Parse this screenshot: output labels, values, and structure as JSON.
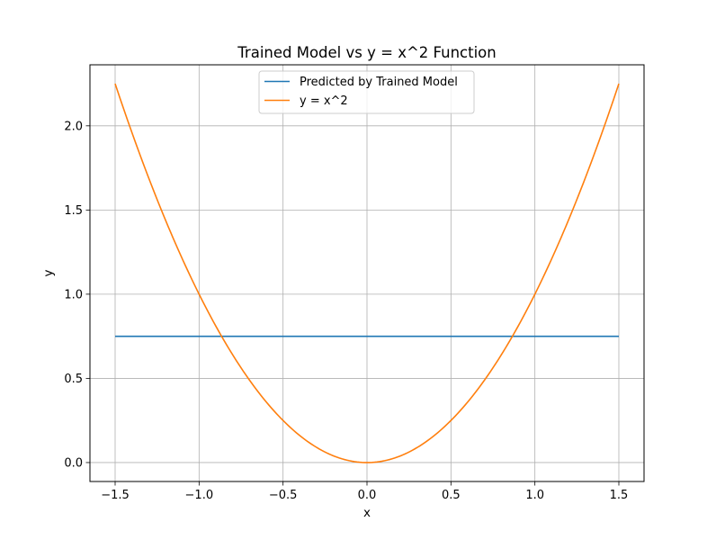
{
  "chart_data": {
    "type": "line",
    "title": "Trained Model vs y = x^2 Function",
    "xlabel": "x",
    "ylabel": "y",
    "xlim": [
      -1.65,
      1.65
    ],
    "ylim": [
      -0.1125,
      2.3625
    ],
    "xticks": [
      -1.5,
      -1.0,
      -0.5,
      0.0,
      0.5,
      1.0,
      1.5
    ],
    "xtick_labels": [
      "−1.5",
      "−1.0",
      "−0.5",
      "0.0",
      "0.5",
      "1.0",
      "1.5"
    ],
    "yticks": [
      0.0,
      0.5,
      1.0,
      1.5,
      2.0
    ],
    "ytick_labels": [
      "0.0",
      "0.5",
      "1.0",
      "1.5",
      "2.0"
    ],
    "grid": true,
    "legend_position": "upper-center",
    "series": [
      {
        "name": "Predicted by Trained Model",
        "color": "#1f77b4",
        "x": [
          -1.5,
          1.5
        ],
        "y": [
          0.75,
          0.75
        ]
      },
      {
        "name": "y = x^2",
        "color": "#ff7f0e",
        "function": "x^2",
        "x_range": [
          -1.5,
          1.5
        ]
      }
    ]
  }
}
